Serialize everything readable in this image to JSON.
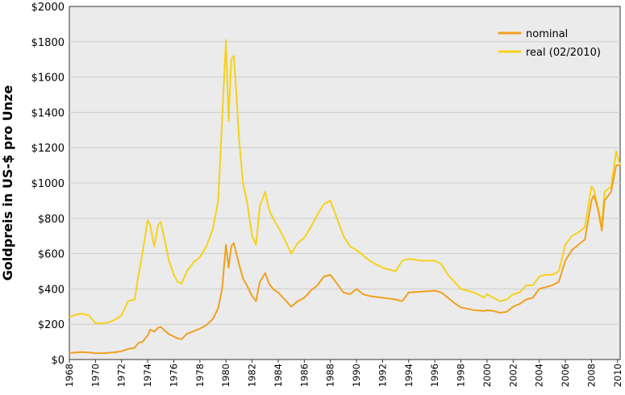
{
  "chart_data": {
    "type": "line",
    "title": "",
    "xlabel": "",
    "ylabel": "Goldpreis in US-$ pro Unze",
    "xlim": [
      1968,
      2010.2
    ],
    "ylim": [
      0,
      2000
    ],
    "grid": true,
    "legend_position": "top-right",
    "y_ticks": [
      {
        "value": 0,
        "label": "$0"
      },
      {
        "value": 200,
        "label": "$200"
      },
      {
        "value": 400,
        "label": "$400"
      },
      {
        "value": 600,
        "label": "$600"
      },
      {
        "value": 800,
        "label": "$800"
      },
      {
        "value": 1000,
        "label": "$1000"
      },
      {
        "value": 1200,
        "label": "$1200"
      },
      {
        "value": 1400,
        "label": "$1400"
      },
      {
        "value": 1600,
        "label": "$1600"
      },
      {
        "value": 1800,
        "label": "$1800"
      },
      {
        "value": 2000,
        "label": "$2000"
      }
    ],
    "x_ticks": [
      {
        "value": 1968,
        "label": "1968"
      },
      {
        "value": 1970,
        "label": "1970"
      },
      {
        "value": 1972,
        "label": "1972"
      },
      {
        "value": 1974,
        "label": "1974"
      },
      {
        "value": 1976,
        "label": "1976"
      },
      {
        "value": 1978,
        "label": "1978"
      },
      {
        "value": 1980,
        "label": "1980"
      },
      {
        "value": 1982,
        "label": "1982"
      },
      {
        "value": 1984,
        "label": "1984"
      },
      {
        "value": 1986,
        "label": "1986"
      },
      {
        "value": 1988,
        "label": "1988"
      },
      {
        "value": 1990,
        "label": "1990"
      },
      {
        "value": 1992,
        "label": "1992"
      },
      {
        "value": 1994,
        "label": "1994"
      },
      {
        "value": 1996,
        "label": "1996"
      },
      {
        "value": 1998,
        "label": "1998"
      },
      {
        "value": 2000,
        "label": "2000"
      },
      {
        "value": 2002,
        "label": "2002"
      },
      {
        "value": 2004,
        "label": "2004"
      },
      {
        "value": 2006,
        "label": "2006"
      },
      {
        "value": 2008,
        "label": "2008"
      },
      {
        "value": 2010,
        "label": "2010"
      }
    ],
    "series": [
      {
        "name": "nominal",
        "color": "#f0a020",
        "x": [
          1968,
          1968.5,
          1969,
          1969.5,
          1970,
          1970.5,
          1971,
          1971.5,
          1972,
          1972.5,
          1973,
          1973.3,
          1973.6,
          1974,
          1974.2,
          1974.5,
          1974.8,
          1975,
          1975.3,
          1975.6,
          1976,
          1976.3,
          1976.6,
          1977,
          1977.5,
          1978,
          1978.5,
          1979,
          1979.4,
          1979.7,
          1980,
          1980.2,
          1980.4,
          1980.6,
          1980.8,
          1981,
          1981.3,
          1981.6,
          1982,
          1982.3,
          1982.6,
          1983,
          1983.3,
          1983.6,
          1984,
          1984.5,
          1985,
          1985.5,
          1986,
          1986.5,
          1987,
          1987.5,
          1988,
          1988.5,
          1989,
          1989.5,
          1990,
          1990.5,
          1991,
          1992,
          1993,
          1993.5,
          1994,
          1995,
          1996,
          1996.5,
          1997,
          1997.5,
          1998,
          1999,
          1999.8,
          2000,
          2000.5,
          2001,
          2001.5,
          2002,
          2002.5,
          2003,
          2003.5,
          2004,
          2004.5,
          2005,
          2005.5,
          2006,
          2006.5,
          2007,
          2007.5,
          2008,
          2008.2,
          2008.5,
          2008.8,
          2009,
          2009.5,
          2009.9,
          2010.2
        ],
        "values": [
          38,
          40,
          42,
          40,
          35,
          36,
          38,
          41,
          47,
          60,
          66,
          95,
          100,
          135,
          170,
          158,
          180,
          185,
          165,
          145,
          130,
          120,
          115,
          145,
          160,
          175,
          195,
          230,
          290,
          400,
          650,
          520,
          640,
          660,
          600,
          540,
          460,
          420,
          360,
          330,
          440,
          490,
          430,
          400,
          380,
          340,
          300,
          330,
          350,
          390,
          420,
          470,
          480,
          430,
          380,
          370,
          400,
          370,
          360,
          350,
          340,
          330,
          380,
          385,
          390,
          380,
          350,
          320,
          295,
          280,
          275,
          280,
          275,
          265,
          270,
          300,
          315,
          340,
          350,
          400,
          410,
          420,
          440,
          560,
          620,
          650,
          680,
          900,
          930,
          850,
          730,
          900,
          950,
          1100,
          1100
        ]
      },
      {
        "name": "real (02/2010)",
        "color": "#f5d21c",
        "x": [
          1968,
          1968.5,
          1969,
          1969.5,
          1970,
          1970.5,
          1971,
          1971.5,
          1972,
          1972.5,
          1973,
          1973.3,
          1973.6,
          1974,
          1974.2,
          1974.5,
          1974.8,
          1975,
          1975.3,
          1975.6,
          1976,
          1976.3,
          1976.6,
          1977,
          1977.5,
          1978,
          1978.5,
          1979,
          1979.4,
          1979.7,
          1980,
          1980.2,
          1980.4,
          1980.6,
          1980.8,
          1981,
          1981.3,
          1981.6,
          1982,
          1982.3,
          1982.6,
          1983,
          1983.3,
          1983.6,
          1984,
          1984.5,
          1985,
          1985.5,
          1986,
          1986.5,
          1987,
          1987.5,
          1988,
          1988.5,
          1989,
          1989.5,
          1990,
          1990.5,
          1991,
          1992,
          1993,
          1993.5,
          1994,
          1995,
          1996,
          1996.5,
          1997,
          1997.5,
          1998,
          1999,
          1999.8,
          2000,
          2000.5,
          2001,
          2001.5,
          2002,
          2002.5,
          2003,
          2003.5,
          2004,
          2004.5,
          2005,
          2005.5,
          2006,
          2006.5,
          2007,
          2007.5,
          2008,
          2008.2,
          2008.5,
          2008.8,
          2009,
          2009.5,
          2009.9,
          2010.2
        ],
        "values": [
          240,
          255,
          260,
          250,
          205,
          205,
          210,
          225,
          250,
          330,
          340,
          480,
          600,
          790,
          760,
          640,
          760,
          780,
          680,
          570,
          480,
          440,
          430,
          500,
          550,
          580,
          640,
          740,
          900,
          1350,
          1810,
          1350,
          1700,
          1720,
          1500,
          1250,
          1000,
          900,
          700,
          650,
          870,
          950,
          850,
          800,
          750,
          680,
          600,
          660,
          690,
          750,
          820,
          880,
          900,
          800,
          700,
          640,
          620,
          590,
          560,
          520,
          500,
          560,
          570,
          560,
          560,
          540,
          480,
          440,
          400,
          380,
          350,
          370,
          350,
          330,
          340,
          370,
          380,
          420,
          420,
          470,
          480,
          480,
          500,
          650,
          700,
          720,
          750,
          980,
          960,
          860,
          760,
          950,
          980,
          1180,
          1100
        ]
      }
    ]
  }
}
